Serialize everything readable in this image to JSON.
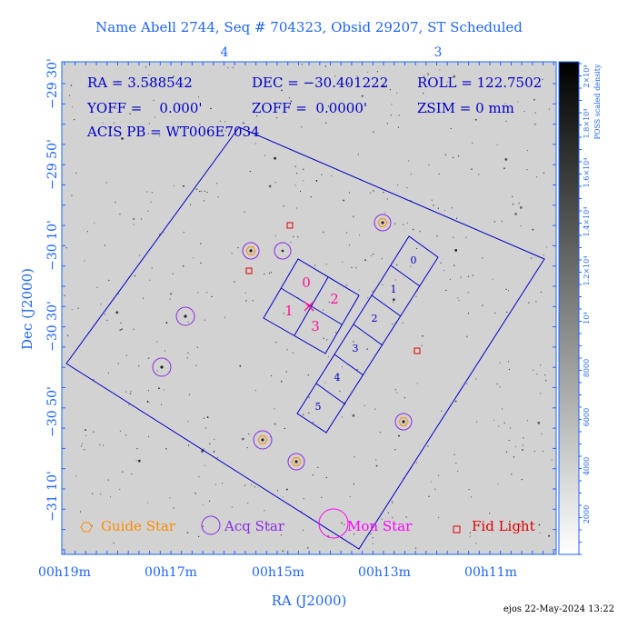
{
  "title": "Name Abell 2744, Seq # 704323, Obsid 29207, ST Scheduled",
  "info": {
    "ra": "RA = 3.588542",
    "dec": "DEC = −30.401222",
    "roll": "ROLL = 122.7502",
    "yoff": "YOFF =    0.000'",
    "zoff": "ZOFF =  0.0000'",
    "zsim": "ZSIM = 0 mm",
    "acis": "ACIS PB = WT006E7034"
  },
  "axes": {
    "xlabel": "RA (J2000)",
    "ylabel": "Dec (J2000)",
    "x_ticks": [
      "00h19m",
      "00h17m",
      "00h15m",
      "00h13m",
      "00h11m"
    ],
    "y_ticks": [
      "−29 30'",
      "−29 50'",
      "−30 10'",
      "−30 30'",
      "−30 50'",
      "−31 10'"
    ],
    "top_ticks": [
      "4",
      "3"
    ]
  },
  "colorbar": {
    "label": "POSS scaled density",
    "ticks": [
      "2000",
      "4000",
      "6000",
      "8000",
      "10⁴",
      "1.2×10⁴",
      "1.4×10⁴",
      "1.6×10⁴",
      "1.8×10⁴",
      "2×10⁴"
    ]
  },
  "legend": {
    "guide": "Guide Star",
    "acq": "Acq Star",
    "mon": "Mon Star",
    "fid": "Fid Light"
  },
  "chips": {
    "i_array": [
      "0",
      "1",
      "2",
      "3"
    ],
    "s_array": [
      "0",
      "1",
      "2",
      "3",
      "4",
      "5"
    ]
  },
  "footer": "ejos 22-May-2024 13:22",
  "colors": {
    "axis": "#1e64ff",
    "frame": "#0000c8",
    "guide": "#ff8c00",
    "acq": "#8a2be2",
    "mon": "#ff00ff",
    "fid": "#e00000",
    "chip_label": "#ff1493"
  },
  "chart_data": {
    "type": "scatter",
    "title": "Name Abell 2744, Seq # 704323, Obsid 29207, ST Scheduled",
    "xlabel": "RA (J2000)",
    "ylabel": "Dec (J2000)",
    "legend_position": "bottom",
    "grid": false,
    "center": {
      "ra_deg": 3.588542,
      "dec_deg": -30.401222,
      "roll_deg": 122.7502
    }
  }
}
